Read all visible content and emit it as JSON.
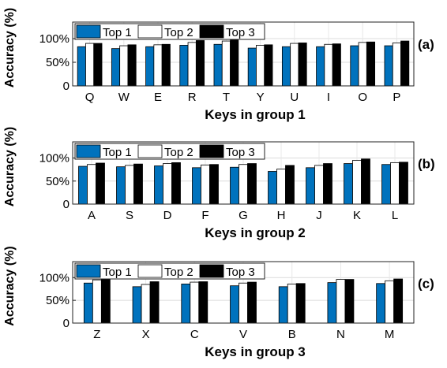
{
  "chart_data": [
    {
      "type": "bar",
      "panel_label": "(a)",
      "xlabel": "Keys in group 1",
      "ylabel": "Accuracy (%)",
      "ylim": [
        0,
        100
      ],
      "yticks": [
        "0",
        "50%",
        "100%"
      ],
      "grid": true,
      "legend_position": "top-left",
      "categories": [
        "Q",
        "W",
        "E",
        "R",
        "T",
        "Y",
        "U",
        "I",
        "O",
        "P"
      ],
      "series": [
        {
          "name": "Top 1",
          "color": "#0072BD",
          "values": [
            83,
            79,
            83,
            86,
            88,
            80,
            83,
            83,
            85,
            85
          ]
        },
        {
          "name": "Top 2",
          "color": "#ffffff",
          "values": [
            90,
            85,
            87,
            92,
            95,
            86,
            90,
            88,
            92,
            91
          ]
        },
        {
          "name": "Top 3",
          "color": "#000000",
          "values": [
            90,
            87,
            88,
            96,
            97,
            87,
            91,
            89,
            93,
            95
          ]
        }
      ]
    },
    {
      "type": "bar",
      "panel_label": "(b)",
      "xlabel": "Keys in group 2",
      "ylabel": "Accuracy (%)",
      "ylim": [
        0,
        100
      ],
      "yticks": [
        "0",
        "50%",
        "100%"
      ],
      "grid": true,
      "legend_position": "top-left",
      "categories": [
        "A",
        "S",
        "D",
        "F",
        "G",
        "H",
        "J",
        "K",
        "L"
      ],
      "series": [
        {
          "name": "Top 1",
          "color": "#0072BD",
          "values": [
            82,
            81,
            83,
            79,
            80,
            71,
            79,
            88,
            86
          ]
        },
        {
          "name": "Top 2",
          "color": "#ffffff",
          "values": [
            86,
            84,
            88,
            85,
            86,
            76,
            84,
            95,
            90
          ]
        },
        {
          "name": "Top 3",
          "color": "#000000",
          "values": [
            89,
            87,
            90,
            86,
            88,
            84,
            88,
            98,
            91
          ]
        }
      ]
    },
    {
      "type": "bar",
      "panel_label": "(c)",
      "xlabel": "Keys in group 3",
      "ylabel": "Accuracy (%)",
      "ylim": [
        0,
        100
      ],
      "yticks": [
        "0",
        "50%",
        "100%"
      ],
      "grid": true,
      "legend_position": "top-left",
      "categories": [
        "Z",
        "X",
        "C",
        "V",
        "B",
        "N",
        "M"
      ],
      "series": [
        {
          "name": "Top 1",
          "color": "#0072BD",
          "values": [
            88,
            80,
            86,
            82,
            80,
            89,
            87
          ]
        },
        {
          "name": "Top 2",
          "color": "#ffffff",
          "values": [
            95,
            85,
            90,
            88,
            86,
            96,
            93
          ]
        },
        {
          "name": "Top 3",
          "color": "#000000",
          "values": [
            98,
            91,
            91,
            90,
            87,
            96,
            97
          ]
        }
      ]
    }
  ]
}
